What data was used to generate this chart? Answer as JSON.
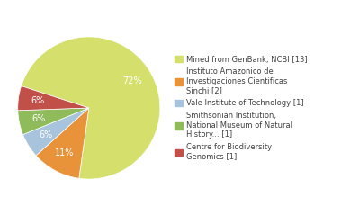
{
  "legend_labels": [
    "Mined from GenBank, NCBI [13]",
    "Instituto Amazonico de\nInvestigaciones Cientificas\nSinchi [2]",
    "Vale Institute of Technology [1]",
    "Smithsonian Institution,\nNational Museum of Natural\nHistory... [1]",
    "Centre for Biodiversity\nGenomics [1]"
  ],
  "values": [
    13,
    2,
    1,
    1,
    1
  ],
  "colors": [
    "#d4e06b",
    "#e8923a",
    "#a8c4dc",
    "#8fbb5a",
    "#c05048"
  ],
  "startangle": 162,
  "background_color": "#ffffff",
  "text_color": "#404040",
  "font_size": 7.0,
  "pct_color": "white"
}
